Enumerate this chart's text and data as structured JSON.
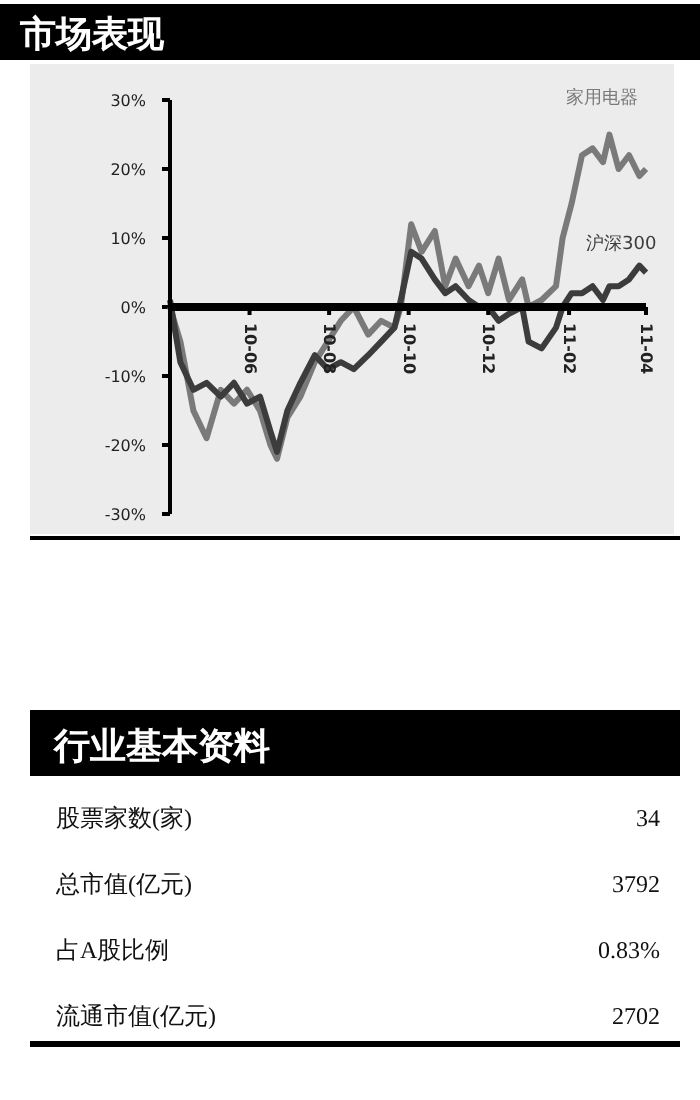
{
  "chart_data": [
    {
      "type": "line",
      "title": "市场表现",
      "x": [
        "2010-04-01",
        "2010-04-09",
        "2010-04-19",
        "2010-04-29",
        "2010-05-10",
        "2010-05-20",
        "2010-05-30",
        "2010-06-09",
        "2010-06-17",
        "2010-06-22",
        "2010-06-30",
        "2010-07-10",
        "2010-07-21",
        "2010-07-31",
        "2010-08-10",
        "2010-08-20",
        "2010-08-31",
        "2010-09-10",
        "2010-09-20",
        "2010-09-25",
        "2010-10-03",
        "2010-10-11",
        "2010-10-21",
        "2010-10-29",
        "2010-11-06",
        "2010-11-16",
        "2010-11-24",
        "2010-12-01",
        "2010-12-09",
        "2010-12-17",
        "2010-12-27",
        "2011-01-01",
        "2011-01-11",
        "2011-01-22",
        "2011-01-27",
        "2011-02-03",
        "2011-02-11",
        "2011-02-19",
        "2011-02-27",
        "2011-03-04",
        "2011-03-11",
        "2011-03-19",
        "2011-03-27",
        "2011-04-01"
      ],
      "series": [
        {
          "name": "家用电器",
          "color": "#7a7a7a",
          "values": [
            0,
            -5,
            -15,
            -19,
            -12,
            -14,
            -12,
            -15,
            -20,
            -22,
            -16,
            -13,
            -8,
            -5,
            -2,
            0,
            -4,
            -2,
            -3,
            0,
            12,
            8,
            11,
            3,
            7,
            3,
            6,
            2,
            7,
            1,
            4,
            0,
            1,
            3,
            10,
            15,
            22,
            23,
            21,
            25,
            20,
            22,
            19,
            20
          ]
        },
        {
          "name": "沪深300",
          "color": "#3c3c3c",
          "values": [
            1,
            -8,
            -12,
            -11,
            -13,
            -11,
            -14,
            -13,
            -18,
            -21,
            -15,
            -11,
            -7,
            -9,
            -8,
            -9,
            -7,
            -5,
            -3,
            1,
            8,
            7,
            4,
            2,
            3,
            1,
            0,
            0,
            -2,
            -1,
            0,
            -5,
            -6,
            -3,
            0,
            2,
            2,
            3,
            1,
            3,
            3,
            4,
            6,
            5
          ]
        }
      ],
      "xlim": [
        "2010-04-01",
        "2011-04-01"
      ],
      "xticks": [
        {
          "value": "2010-04-01",
          "label": null
        },
        {
          "value": "2010-06-01",
          "label": "10-06"
        },
        {
          "value": "2010-08-01",
          "label": "10-08"
        },
        {
          "value": "2010-10-01",
          "label": "10-10"
        },
        {
          "value": "2010-12-01",
          "label": "10-12"
        },
        {
          "value": "2011-02-01",
          "label": "11-02"
        },
        {
          "value": "2011-04-01",
          "label": "11-04"
        }
      ],
      "ylim": [
        -30,
        30
      ],
      "yticks": [
        {
          "value": -30,
          "label": "-30%"
        },
        {
          "value": -20,
          "label": "-20%"
        },
        {
          "value": -10,
          "label": "-10%"
        },
        {
          "value": 0,
          "label": "0%"
        },
        {
          "value": 10,
          "label": "10%"
        },
        {
          "value": 20,
          "label": "20%"
        },
        {
          "value": 30,
          "label": "30%"
        }
      ],
      "grid": false
    },
    {
      "type": "other",
      "title": "行业基本资料",
      "categories": [
        "股票家数(家)",
        "总市值(亿元)",
        "占A股比例",
        "流通市值(亿元)"
      ],
      "value_labels": [
        "34",
        "3792",
        "0.83%",
        "2702"
      ]
    }
  ]
}
